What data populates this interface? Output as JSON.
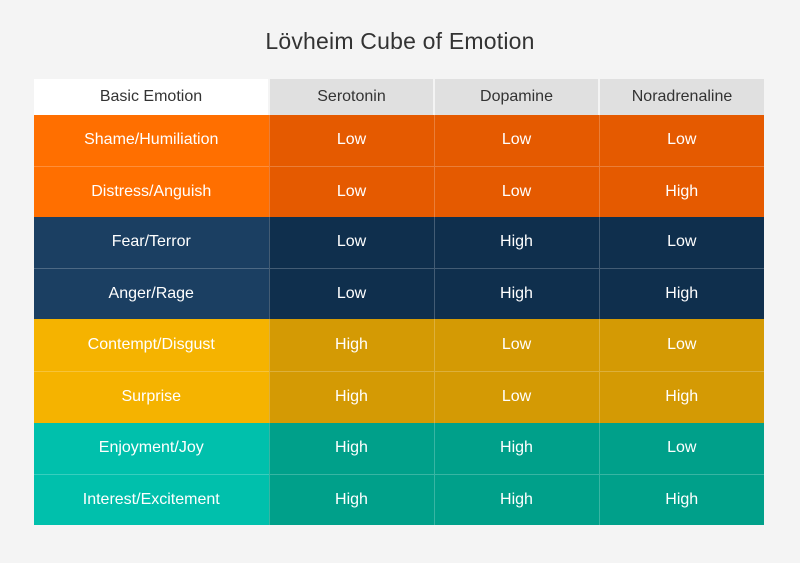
{
  "title": "Lövheim Cube of Emotion",
  "headers": [
    "Basic Emotion",
    "Serotonin",
    "Dopamine",
    "Noradrenaline"
  ],
  "colors": {
    "orange": {
      "label": "#ff6f00",
      "cell": "#e55a00"
    },
    "navy": {
      "label": "#1b3f62",
      "cell": "#0f2f4d"
    },
    "yellow": {
      "label": "#f5b300",
      "cell": "#d49a04"
    },
    "teal": {
      "label": "#00c0ac",
      "cell": "#00a08a"
    }
  },
  "rows": [
    {
      "emotion": "Shame/Humiliation",
      "serotonin": "Low",
      "dopamine": "Low",
      "noradrenaline": "Low",
      "group": "orange"
    },
    {
      "emotion": "Distress/Anguish",
      "serotonin": "Low",
      "dopamine": "Low",
      "noradrenaline": "High",
      "group": "orange"
    },
    {
      "emotion": "Fear/Terror",
      "serotonin": "Low",
      "dopamine": "High",
      "noradrenaline": "Low",
      "group": "navy"
    },
    {
      "emotion": "Anger/Rage",
      "serotonin": "Low",
      "dopamine": "High",
      "noradrenaline": "High",
      "group": "navy"
    },
    {
      "emotion": "Contempt/Disgust",
      "serotonin": "High",
      "dopamine": "Low",
      "noradrenaline": "Low",
      "group": "yellow"
    },
    {
      "emotion": "Surprise",
      "serotonin": "High",
      "dopamine": "Low",
      "noradrenaline": "High",
      "group": "yellow"
    },
    {
      "emotion": "Enjoyment/Joy",
      "serotonin": "High",
      "dopamine": "High",
      "noradrenaline": "Low",
      "group": "teal"
    },
    {
      "emotion": "Interest/Excitement",
      "serotonin": "High",
      "dopamine": "High",
      "noradrenaline": "High",
      "group": "teal"
    }
  ]
}
